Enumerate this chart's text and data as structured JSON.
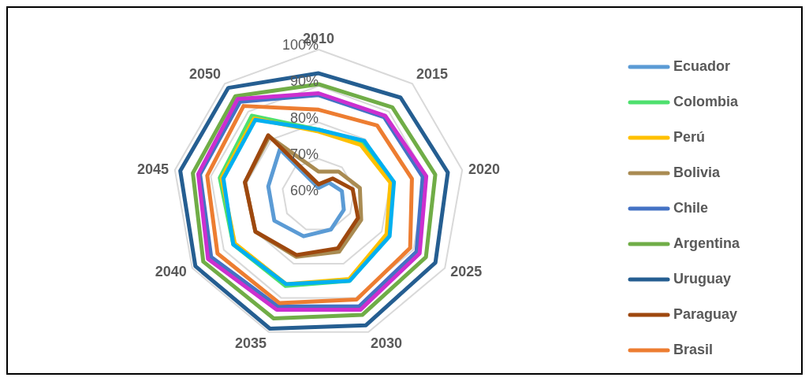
{
  "chart_data": {
    "type": "radar",
    "categories": [
      "2010",
      "2015",
      "2020",
      "2025",
      "2030",
      "2035",
      "2040",
      "2045",
      "2050"
    ],
    "ylim": [
      60,
      100
    ],
    "yticks": [
      {
        "value": 60,
        "label": "60%"
      },
      {
        "value": 70,
        "label": "70%"
      },
      {
        "value": 80,
        "label": "80%"
      },
      {
        "value": 90,
        "label": "90%"
      },
      {
        "value": 100,
        "label": "100%"
      }
    ],
    "grid": true,
    "legend": "right",
    "marker": "none",
    "line_style": "solid",
    "series": [
      {
        "name": "Ecuador",
        "color": "#5b9bd5",
        "values": [
          62,
          64.5,
          66.5,
          68,
          70,
          72,
          74,
          74,
          76.5
        ]
      },
      {
        "name": "Colombia",
        "color": "#4ee06e",
        "values": [
          78,
          79,
          80.5,
          82,
          85,
          86.5,
          87,
          87.5,
          88.5
        ]
      },
      {
        "name": "Perú",
        "color": "#ffc000",
        "values": [
          77.5,
          78,
          80,
          81.5,
          84.5,
          86,
          86.5,
          87,
          87.5
        ]
      },
      {
        "name": "Bolivia",
        "color": "#a98b52",
        "values": [
          66.5,
          68.5,
          71.5,
          73.5,
          76.5,
          78,
          80,
          80.5,
          81
        ]
      },
      {
        "name": "Chile",
        "color": "#4472c4",
        "values": [
          87.5,
          88,
          89,
          91,
          92.5,
          92.5,
          94,
          93,
          93.5
        ]
      },
      {
        "name": "Argentina",
        "color": "#70ad47",
        "values": [
          90.5,
          91.5,
          92.5,
          94,
          95,
          96,
          96.5,
          95,
          95.5
        ]
      },
      {
        "name": "Uruguay",
        "color": "#255e91",
        "values": [
          93.5,
          95,
          96,
          97,
          98,
          99,
          99,
          98.5,
          98.5
        ]
      },
      {
        "name": "Paraguay",
        "color": "#9e480e",
        "values": [
          63,
          66,
          69.5,
          72.5,
          75.5,
          77.5,
          80,
          80.5,
          81.5
        ]
      },
      {
        "name": "Brasil",
        "color": "#ed7d31",
        "values": [
          83.5,
          85,
          86,
          89,
          90.5,
          91.5,
          92,
          91,
          92
        ]
      },
      {
        "color": "#cc2fcf",
        "values": [
          88,
          88.5,
          90,
          92,
          93.5,
          93.5,
          95,
          93.5,
          94.5
        ]
      },
      {
        "color": "#00b0f0",
        "values": [
          78,
          79.5,
          81,
          82.5,
          85,
          86,
          87,
          86.5,
          87
        ]
      }
    ]
  }
}
